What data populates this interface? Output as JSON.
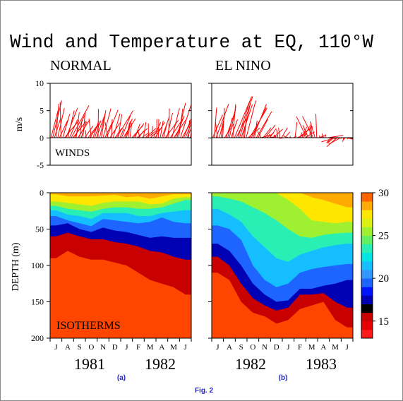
{
  "figure": {
    "title": "Wind and Temperature at EQ, 110°W",
    "caption": "Fig. 2"
  },
  "colors": {
    "wind": "#ff0000",
    "axis": "#000000",
    "caption": "#1f1fcf",
    "background": "#ffffff"
  },
  "chart_data": [
    {
      "id": "a_winds",
      "type": "line",
      "panel_label": "NORMAL",
      "annotation": "WINDS",
      "ylabel": "m/s",
      "ylim": [
        -5,
        10
      ],
      "yticks": [
        -5,
        0,
        5,
        10
      ],
      "xlim": [
        0,
        12
      ],
      "wind_base": 0,
      "vectors_per_month": 7,
      "monthly_mean": [
        {
          "u": 0.4,
          "v": 4.6
        },
        {
          "u": 0.9,
          "v": 4.2
        },
        {
          "u": 0.7,
          "v": 3.4
        },
        {
          "u": 0.5,
          "v": 3.0
        },
        {
          "u": 0.6,
          "v": 3.8
        },
        {
          "u": 0.6,
          "v": 3.6
        },
        {
          "u": 0.5,
          "v": 3.4
        },
        {
          "u": 0.4,
          "v": 2.2
        },
        {
          "u": 0.5,
          "v": 2.4
        },
        {
          "u": 0.5,
          "v": 3.2
        },
        {
          "u": 0.6,
          "v": 4.2
        },
        {
          "u": 0.7,
          "v": 5.0
        }
      ]
    },
    {
      "id": "b_winds",
      "type": "line",
      "panel_label": "EL NINO",
      "ylabel": "",
      "ylim": [
        -5,
        10
      ],
      "yticks": [
        -5,
        0,
        5,
        10
      ],
      "xlim": [
        0,
        12
      ],
      "wind_base": 0,
      "vectors_per_month": 7,
      "monthly_mean": [
        {
          "u": 0.6,
          "v": 4.5
        },
        {
          "u": 0.8,
          "v": 5.0
        },
        {
          "u": 0.9,
          "v": 5.2
        },
        {
          "u": 0.7,
          "v": 4.2
        },
        {
          "u": 0.4,
          "v": 1.4
        },
        {
          "u": 0.6,
          "v": 1.4
        },
        {
          "u": 0.2,
          "v": 0.6
        },
        {
          "u": 0.5,
          "v": 1.8
        },
        {
          "u": -0.6,
          "v": 2.8
        },
        {
          "u": 0.6,
          "v": 0.6
        },
        {
          "u": -0.8,
          "v": -1.2
        },
        {
          "u": 0.5,
          "v": -0.2
        }
      ]
    },
    {
      "id": "a_isotherms",
      "type": "heatmap",
      "annotation": "ISOTHERMS",
      "ylabel": "DEPTH (m)",
      "ylim": [
        200,
        0
      ],
      "yticks": [
        0,
        50,
        100,
        150,
        200
      ],
      "months": [
        "J",
        "A",
        "S",
        "O",
        "N",
        "D",
        "J",
        "F",
        "M",
        "A",
        "M",
        "J"
      ],
      "years": [
        "1981",
        "1982"
      ],
      "isotherm_depths": {
        "levels": [
          28,
          26,
          24,
          22,
          20,
          18,
          16,
          14
        ],
        "depth_m": [
          [
            2,
            12,
            18,
            24,
            32,
            45,
            60,
            90
          ],
          [
            5,
            14,
            22,
            30,
            38,
            42,
            55,
            80
          ],
          [
            5,
            16,
            24,
            32,
            42,
            50,
            60,
            88
          ],
          [
            5,
            18,
            26,
            36,
            46,
            54,
            64,
            92
          ],
          [
            4,
            14,
            22,
            28,
            36,
            48,
            64,
            92
          ],
          [
            3,
            12,
            20,
            28,
            38,
            52,
            68,
            96
          ],
          [
            6,
            12,
            20,
            28,
            40,
            54,
            70,
            100
          ],
          [
            5,
            12,
            22,
            32,
            42,
            58,
            74,
            110
          ],
          [
            8,
            16,
            22,
            32,
            40,
            62,
            80,
            120
          ],
          [
            5,
            15,
            20,
            28,
            34,
            60,
            82,
            125
          ],
          [
            2,
            8,
            15,
            26,
            40,
            62,
            88,
            130
          ],
          [
            2,
            6,
            10,
            24,
            42,
            62,
            92,
            140
          ]
        ]
      }
    },
    {
      "id": "b_isotherms",
      "type": "heatmap",
      "ylim": [
        200,
        0
      ],
      "yticks": [
        0,
        50,
        100,
        150,
        200
      ],
      "months": [
        "J",
        "A",
        "S",
        "O",
        "N",
        "D",
        "J",
        "F",
        "M",
        "A",
        "M",
        "J"
      ],
      "years": [
        "1982",
        "1983"
      ],
      "isotherm_depths": {
        "levels": [
          28,
          26,
          24,
          22,
          20,
          18,
          16,
          14
        ],
        "depth_m": [
          [
            0,
            0,
            5,
            22,
            45,
            70,
            88,
            110
          ],
          [
            0,
            0,
            8,
            30,
            50,
            80,
            100,
            120
          ],
          [
            0,
            0,
            12,
            40,
            65,
            100,
            125,
            150
          ],
          [
            0,
            0,
            20,
            60,
            100,
            125,
            145,
            165
          ],
          [
            0,
            0,
            28,
            75,
            120,
            140,
            155,
            170
          ],
          [
            0,
            0,
            38,
            90,
            130,
            150,
            162,
            180
          ],
          [
            0,
            10,
            50,
            95,
            125,
            148,
            158,
            175
          ],
          [
            0,
            22,
            60,
            85,
            110,
            132,
            140,
            160
          ],
          [
            6,
            38,
            62,
            80,
            105,
            132,
            140,
            155
          ],
          [
            10,
            40,
            58,
            75,
            102,
            128,
            138,
            150
          ],
          [
            15,
            42,
            56,
            72,
            100,
            125,
            150,
            175
          ],
          [
            20,
            40,
            55,
            70,
            98,
            120,
            158,
            185
          ]
        ]
      }
    },
    {
      "id": "colorbar",
      "type": "heatmap",
      "vmin": 13,
      "vmax": 30,
      "ticks": [
        15,
        20,
        25,
        30
      ],
      "bands": [
        {
          "from": 13,
          "to": 14,
          "color": "#ff1a1a"
        },
        {
          "from": 14,
          "to": 15,
          "color": "#e60000"
        },
        {
          "from": 15,
          "to": 16,
          "color": "#c80000"
        },
        {
          "from": 16,
          "to": 17,
          "color": "#000000"
        },
        {
          "from": 17,
          "to": 18,
          "color": "#0000b4"
        },
        {
          "from": 18,
          "to": 19,
          "color": "#0014ff"
        },
        {
          "from": 19,
          "to": 20,
          "color": "#1e64ff"
        },
        {
          "from": 20,
          "to": 21,
          "color": "#3296ff"
        },
        {
          "from": 21,
          "to": 22,
          "color": "#14beff"
        },
        {
          "from": 22,
          "to": 23,
          "color": "#00e6e6"
        },
        {
          "from": 23,
          "to": 24,
          "color": "#28f0b4"
        },
        {
          "from": 24,
          "to": 25,
          "color": "#64f064"
        },
        {
          "from": 25,
          "to": 26,
          "color": "#a0f032"
        },
        {
          "from": 26,
          "to": 27,
          "color": "#dcf014"
        },
        {
          "from": 27,
          "to": 28,
          "color": "#ffe600"
        },
        {
          "from": 28,
          "to": 29,
          "color": "#ffaa00"
        },
        {
          "from": 29,
          "to": 30,
          "color": "#ff6400"
        }
      ],
      "deep_colors": [
        "#ff4600",
        "#ff3000"
      ]
    }
  ],
  "sublabels": {
    "a": "(a)",
    "b": "(b)"
  }
}
